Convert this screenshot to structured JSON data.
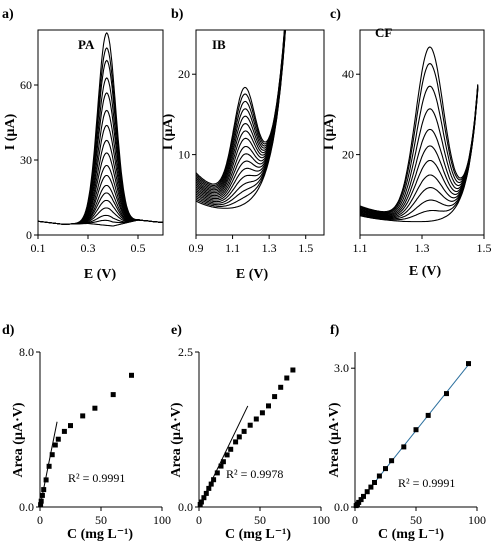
{
  "chart_data": [
    {
      "id": "a",
      "type": "line",
      "panel_label": "a)",
      "series_label": "PA",
      "xlabel": "E (V)",
      "ylabel": "I (µA)",
      "xlim": [
        0.1,
        0.6
      ],
      "ylim": [
        0,
        82
      ],
      "xticks": [
        0.1,
        0.3,
        0.5
      ],
      "xtick_labels": [
        "0.1",
        "0.3",
        "0.5"
      ],
      "yticks": [
        0,
        30,
        60
      ],
      "ytick_labels": [
        "0",
        "30",
        "60"
      ],
      "model": "gauss",
      "baseline": [
        5.5,
        4.3,
        4.6,
        3.6,
        6.0,
        5.0
      ],
      "center": 0.375,
      "width": 0.036,
      "peaks": [
        0,
        2,
        4,
        7,
        10,
        13,
        16,
        20,
        24,
        29,
        34,
        40,
        46,
        53,
        59,
        66,
        71,
        77
      ]
    },
    {
      "id": "b",
      "type": "line",
      "panel_label": "b)",
      "series_label": "IB",
      "xlabel": "E (V)",
      "ylabel": "I (µA)",
      "xlim": [
        0.9,
        1.6
      ],
      "ylim": [
        0,
        25.5
      ],
      "xticks": [
        0.9,
        1.1,
        1.3,
        1.5
      ],
      "xtick_labels": [
        "0.9",
        "1.1",
        "1.3",
        "1.5"
      ],
      "yticks": [
        10,
        20
      ],
      "ytick_labels": [
        "10",
        "20"
      ],
      "model": "rise",
      "x_end": 1.4,
      "start_low": 4.2,
      "start_step": 0.22,
      "start_ref": 0.9,
      "rise_end": 1.05,
      "decay": 0.16,
      "center": 1.165,
      "width": 0.06,
      "tail_amp": 3.2,
      "tail_rate": 14,
      "tail_ref": 1.25,
      "peaks": [
        0,
        0.7,
        1.4,
        2.1,
        2.9,
        3.7,
        4.5,
        5.3,
        6.1,
        7.0,
        7.8,
        8.6,
        9.4,
        10.2,
        11.0,
        11.8,
        12.5
      ]
    },
    {
      "id": "c",
      "type": "line",
      "panel_label": "c)",
      "series_label": "CF",
      "xlabel": "E (V)",
      "ylabel": "I (µA)",
      "xlim": [
        1.1,
        1.5
      ],
      "ylim": [
        0,
        51
      ],
      "xticks": [
        1.1,
        1.3,
        1.5
      ],
      "xtick_labels": [
        "1.1",
        "1.3",
        "1.5"
      ],
      "yticks": [
        20,
        40
      ],
      "ytick_labels": [
        "20",
        "40"
      ],
      "model": "rise",
      "x_end": 1.48,
      "start_low": 4.8,
      "start_step": 0.22,
      "start_ref": 1.1,
      "rise_end": 1.2,
      "decay": 0.13,
      "center": 1.325,
      "width": 0.045,
      "tail_amp": 3.0,
      "tail_rate": 30,
      "tail_ref": 1.4,
      "peaks": [
        0,
        2.5,
        5,
        8,
        11,
        14.5,
        18,
        22,
        27,
        32.5,
        38,
        42
      ]
    },
    {
      "id": "d",
      "type": "scatter",
      "panel_label": "d)",
      "xlabel": "C (mg L⁻¹)",
      "ylabel": "Area (µA·V)",
      "xlim": [
        0,
        100
      ],
      "ylim": [
        0,
        8
      ],
      "xticks": [
        0,
        50,
        100
      ],
      "xtick_labels": [
        "0",
        "50",
        "100"
      ],
      "yticks": [
        0,
        8
      ],
      "ytick_labels": [
        "0.0",
        "8.0"
      ],
      "r2_text": "R² = 0.9991",
      "points": [
        [
          0.5,
          0.12
        ],
        [
          1,
          0.3
        ],
        [
          2,
          0.6
        ],
        [
          3,
          0.9
        ],
        [
          5,
          1.4
        ],
        [
          7.5,
          2.1
        ],
        [
          10,
          2.7
        ],
        [
          12.5,
          3.2
        ],
        [
          15,
          3.5
        ],
        [
          20,
          3.9
        ],
        [
          25,
          4.2
        ],
        [
          35,
          4.7
        ],
        [
          45,
          5.1
        ],
        [
          60,
          5.8
        ],
        [
          75,
          6.8
        ]
      ],
      "fit_line": [
        [
          0,
          0
        ],
        [
          14,
          4.4
        ]
      ]
    },
    {
      "id": "e",
      "type": "scatter",
      "panel_label": "e)",
      "xlabel": "C (mg L⁻¹)",
      "ylabel": "Area (µA·V)",
      "xlim": [
        0,
        100
      ],
      "ylim": [
        0,
        2.5
      ],
      "xticks": [
        0,
        50,
        100
      ],
      "xtick_labels": [
        "0",
        "50",
        "100"
      ],
      "yticks": [
        0,
        2.5
      ],
      "ytick_labels": [
        "0.0",
        "2.5"
      ],
      "r2_text": "R² = 0.9978",
      "points": [
        [
          1,
          0.04
        ],
        [
          2,
          0.08
        ],
        [
          4,
          0.15
        ],
        [
          6,
          0.22
        ],
        [
          8,
          0.3
        ],
        [
          10,
          0.37
        ],
        [
          12,
          0.44
        ],
        [
          15,
          0.55
        ],
        [
          18,
          0.66
        ],
        [
          20,
          0.73
        ],
        [
          23,
          0.84
        ],
        [
          26,
          0.93
        ],
        [
          30,
          1.05
        ],
        [
          33,
          1.13
        ],
        [
          37,
          1.22
        ],
        [
          42,
          1.32
        ],
        [
          47,
          1.42
        ],
        [
          52,
          1.52
        ],
        [
          57,
          1.63
        ],
        [
          62,
          1.78
        ],
        [
          67,
          1.93
        ],
        [
          72,
          2.08
        ],
        [
          77,
          2.21
        ]
      ],
      "fit_line": [
        [
          0,
          0
        ],
        [
          40,
          1.63
        ]
      ]
    },
    {
      "id": "f",
      "type": "scatter",
      "panel_label": "f)",
      "xlabel": "C (mg L⁻¹)",
      "ylabel": "Area (µA·V)",
      "xlim": [
        0,
        100
      ],
      "ylim": [
        0,
        3.35
      ],
      "xticks": [
        0,
        50,
        100
      ],
      "xtick_labels": [
        "0",
        "50",
        "100"
      ],
      "yticks": [
        0,
        3
      ],
      "ytick_labels": [
        "0.0",
        "3.0"
      ],
      "r2_text": "R² = 0.9991",
      "points": [
        [
          1,
          0.03
        ],
        [
          2,
          0.06
        ],
        [
          3,
          0.1
        ],
        [
          5,
          0.16
        ],
        [
          7,
          0.23
        ],
        [
          10,
          0.33
        ],
        [
          13,
          0.43
        ],
        [
          16,
          0.53
        ],
        [
          20,
          0.67
        ],
        [
          25,
          0.83
        ],
        [
          30,
          1.0
        ],
        [
          40,
          1.3
        ],
        [
          50,
          1.67
        ],
        [
          60,
          1.98
        ],
        [
          75,
          2.45
        ],
        [
          93,
          3.1
        ]
      ],
      "fit_line": [
        [
          0,
          0
        ],
        [
          95,
          3.14
        ]
      ],
      "fit_color": "#2b6f9e"
    }
  ]
}
